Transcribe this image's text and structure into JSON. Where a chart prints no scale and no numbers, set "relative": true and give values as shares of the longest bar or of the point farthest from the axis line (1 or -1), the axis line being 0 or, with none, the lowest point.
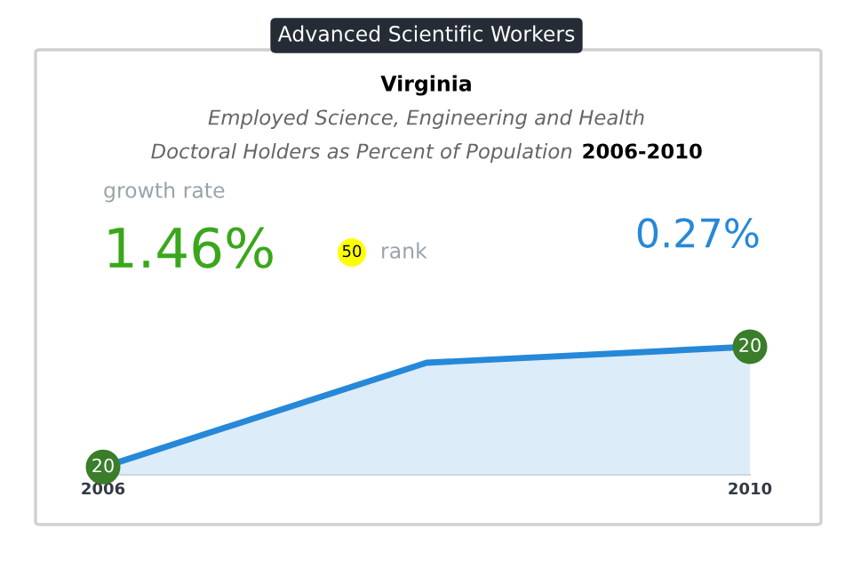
{
  "chart_data": {
    "type": "area",
    "title": "Advanced Scientific Workers",
    "subtitle": "Virginia",
    "x": [
      2006,
      2008,
      2010
    ],
    "xlim": [
      2006,
      2010
    ],
    "xticks": [
      2006,
      2010
    ],
    "relative": true,
    "series": [
      {
        "color": "#2688d8",
        "values": [
          0.06,
          0.875,
          1.0
        ]
      }
    ],
    "annotations": [
      "Employed Science, Engineering and Health Doctoral Holders as Percent of Population",
      "2006-2010",
      "growth rate",
      "1.46%",
      "50",
      "rank",
      "0.27%",
      {
        "text": "20",
        "x": 2006,
        "y": 0.06
      },
      {
        "text": "20",
        "x": 2010,
        "y": 1.0
      }
    ]
  }
}
